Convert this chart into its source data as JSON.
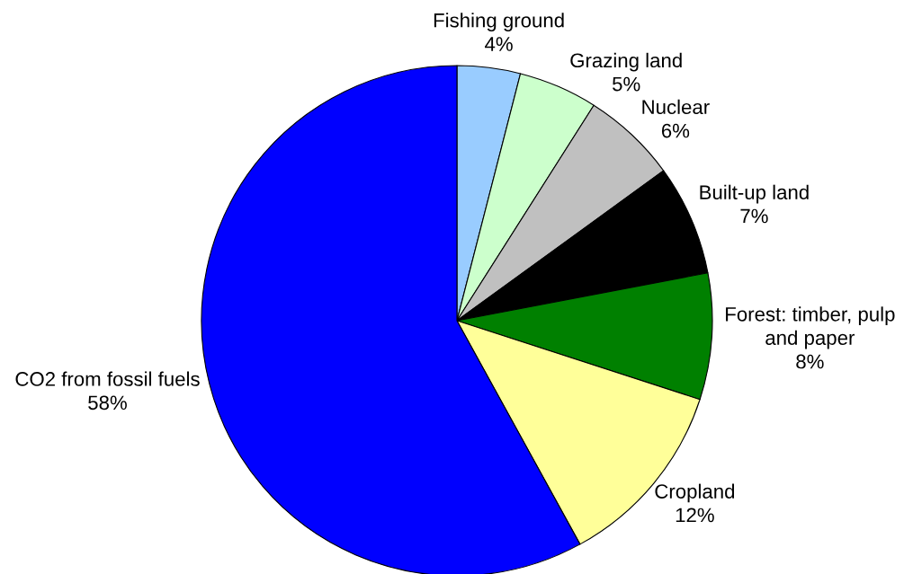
{
  "chart_data": {
    "type": "pie",
    "categories": [
      "Fishing ground",
      "Grazing land",
      "Nuclear",
      "Built-up land",
      "Forest: timber, pulp\nand paper",
      "Cropland",
      "CO2 from fossil fuels"
    ],
    "values": [
      4,
      5,
      6,
      7,
      8,
      12,
      58
    ],
    "value_labels": [
      "4%",
      "5%",
      "6%",
      "7%",
      "8%",
      "12%",
      "58%"
    ],
    "colors": [
      "#99ccff",
      "#ccffcc",
      "#c0c0c0",
      "#000000",
      "#008000",
      "#ffff99",
      "#0000ff"
    ]
  }
}
